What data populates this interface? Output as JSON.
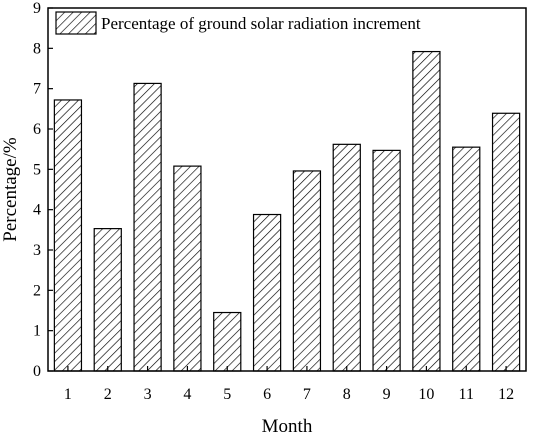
{
  "chart_data": {
    "type": "bar",
    "categories": [
      "1",
      "2",
      "3",
      "4",
      "5",
      "6",
      "7",
      "8",
      "9",
      "10",
      "11",
      "12"
    ],
    "series": [
      {
        "name": "Percentage of ground solar radiation increment",
        "values": [
          6.72,
          3.53,
          7.13,
          5.08,
          1.45,
          3.88,
          4.96,
          5.62,
          5.47,
          7.92,
          5.55,
          6.39
        ]
      }
    ],
    "xlabel": "Month",
    "ylabel": "Percentage/%",
    "ylim": [
      0,
      9
    ],
    "yticks": [
      "0",
      "1",
      "2",
      "3",
      "4",
      "5",
      "6",
      "7",
      "8",
      "9"
    ],
    "grid": false,
    "legend_position": "top-left",
    "bar_fill": "diagonal-hatch",
    "colors": {
      "stroke": "#000000",
      "background": "#ffffff"
    }
  }
}
